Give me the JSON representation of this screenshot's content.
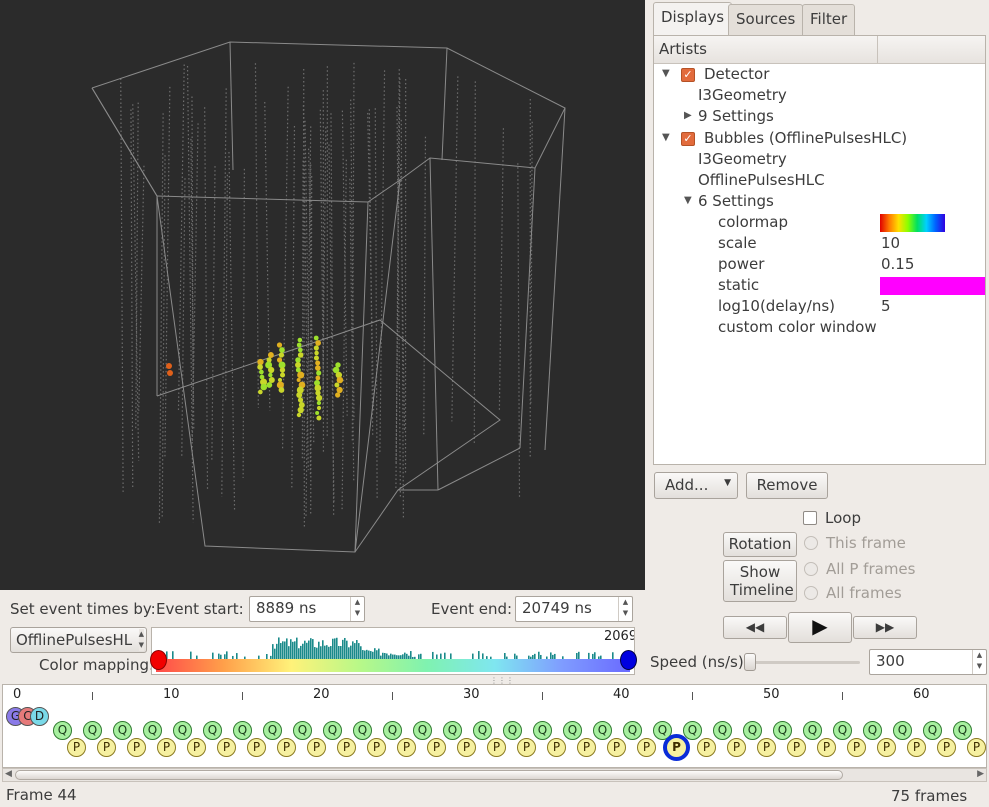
{
  "tabs": [
    "Displays",
    "Sources",
    "Filter"
  ],
  "artists_header": "Artists",
  "tree": {
    "detector": {
      "label": "Detector",
      "children": [
        "I3Geometry",
        "9 Settings"
      ]
    },
    "bubbles": {
      "label": "Bubbles (OfflinePulsesHLC)",
      "children": [
        "I3Geometry",
        "OfflinePulsesHLC",
        "6 Settings"
      ]
    },
    "settings": [
      {
        "key": "colormap",
        "value": ""
      },
      {
        "key": "scale",
        "value": "10"
      },
      {
        "key": "power",
        "value": "0.15"
      },
      {
        "key": "static",
        "value": ""
      },
      {
        "key": "log10(delay/ns)",
        "value": "5"
      },
      {
        "key": "custom color window",
        "value": ""
      }
    ],
    "static_color": "#ff00ff"
  },
  "buttons": {
    "add": "Add...",
    "remove": "Remove",
    "rotation": "Rotation",
    "show_timeline": "Show Timeline"
  },
  "playback": {
    "loop_label": "Loop",
    "radio": [
      "This frame",
      "All P frames",
      "All frames"
    ],
    "speed_label": "Speed (ns/s)",
    "speed_value": "300"
  },
  "event": {
    "set_label": "Set event times by:",
    "start_label": "Event start:",
    "start_value": "8889 ns",
    "end_label": "Event end:",
    "end_value": "20749 ns",
    "source": "OfflinePulsesHL",
    "color_mapping_label": "Color mapping:",
    "hist_max": "2069"
  },
  "timeline": {
    "ticks": [
      "0",
      "10",
      "20",
      "30",
      "40",
      "50",
      "60"
    ],
    "header_badges": [
      "G",
      "C",
      "D"
    ],
    "q_label": "Q",
    "p_label": "P",
    "selected_frame_index": 44
  },
  "status": {
    "frame": "Frame 44",
    "total": "75 frames"
  }
}
